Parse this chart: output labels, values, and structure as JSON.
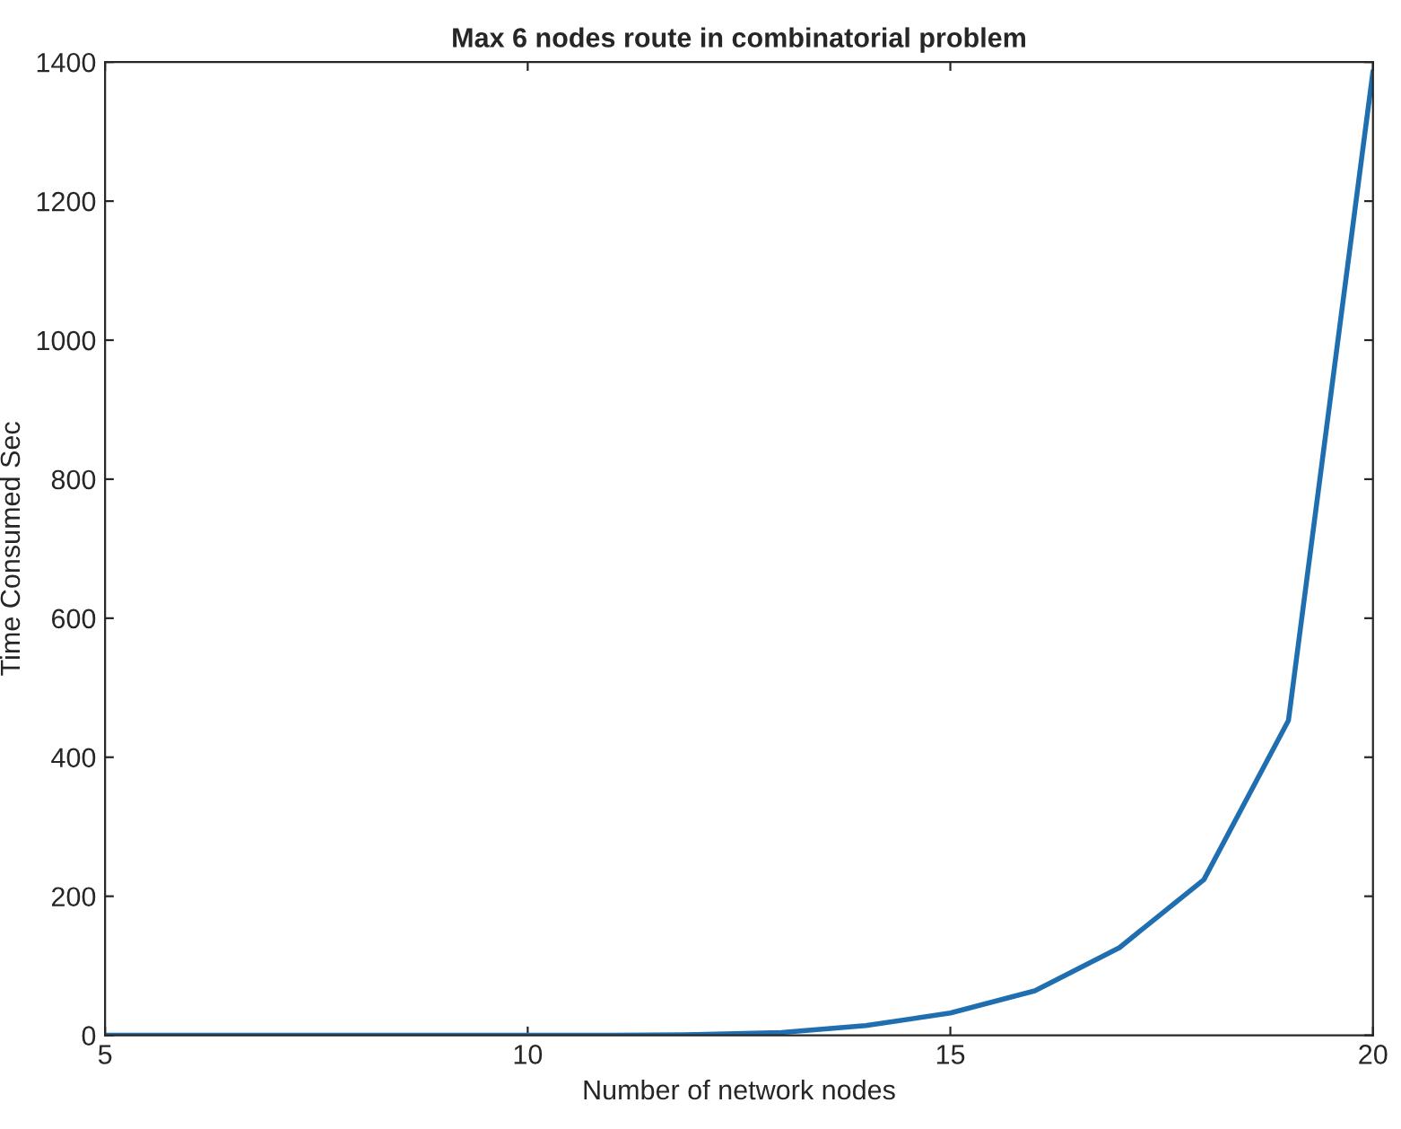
{
  "chart_data": {
    "type": "line",
    "title": "Max 6 nodes route in combinatorial problem",
    "xlabel": "Number of network nodes",
    "ylabel": "Time Consumed Sec",
    "x": [
      5,
      6,
      7,
      8,
      9,
      10,
      11,
      12,
      13,
      14,
      15,
      16,
      17,
      18,
      19,
      20
    ],
    "series": [
      {
        "color": "#1f6fb0",
        "values": [
          0,
          0,
          0,
          0,
          0,
          0,
          0,
          1,
          4,
          14,
          32,
          64,
          126,
          224,
          453,
          1387
        ]
      }
    ],
    "xlim": [
      5,
      20
    ],
    "xticks": [
      5,
      10,
      15,
      20
    ],
    "ylim": [
      0,
      1400
    ],
    "yticks": [
      0,
      200,
      400,
      600,
      800,
      1000,
      1200,
      1400
    ],
    "grid": false,
    "line_style": "solid",
    "marker": "none"
  }
}
